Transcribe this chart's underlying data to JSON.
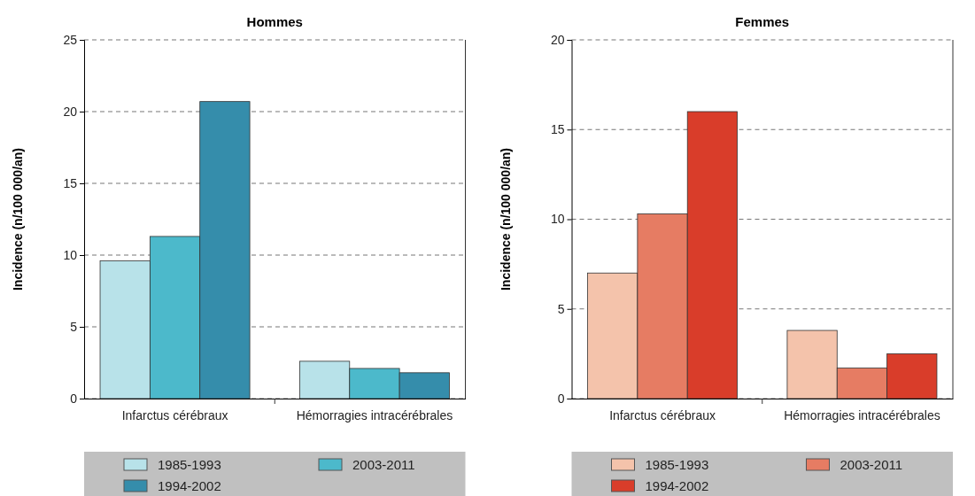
{
  "chart_data": [
    {
      "type": "bar",
      "title": "Hommes",
      "ylabel": "Incidence (n/100 000/an)",
      "categories": [
        "Infarctus cérébraux",
        "Hémorragies intracérébrales"
      ],
      "series": [
        {
          "name": "1985-1993",
          "color": "#b8e2e9",
          "values": [
            9.6,
            2.6
          ]
        },
        {
          "name": "2003-2011",
          "color": "#4cb9cb",
          "values": [
            11.3,
            2.1
          ]
        },
        {
          "name": "1994-2002",
          "color": "#358dab",
          "values": [
            20.7,
            1.8
          ]
        }
      ],
      "ylim": [
        0,
        25
      ],
      "yticks": [
        0,
        5,
        10,
        15,
        20,
        25
      ],
      "grid": "y",
      "legend": "bottom"
    },
    {
      "type": "bar",
      "title": "Femmes",
      "ylabel": "Incidence (n/100 000/an)",
      "categories": [
        "Infarctus cérébraux",
        "Hémorragies intracérébrales"
      ],
      "series": [
        {
          "name": "1985-1993",
          "color": "#f4c3ab",
          "values": [
            7.0,
            3.8
          ]
        },
        {
          "name": "2003-2011",
          "color": "#e67c63",
          "values": [
            10.3,
            1.7
          ]
        },
        {
          "name": "1994-2002",
          "color": "#d93d2a",
          "values": [
            16.0,
            2.5
          ]
        }
      ],
      "ylim": [
        0,
        20
      ],
      "yticks": [
        0,
        5,
        10,
        15,
        20
      ],
      "grid": "y",
      "legend": "bottom"
    }
  ]
}
